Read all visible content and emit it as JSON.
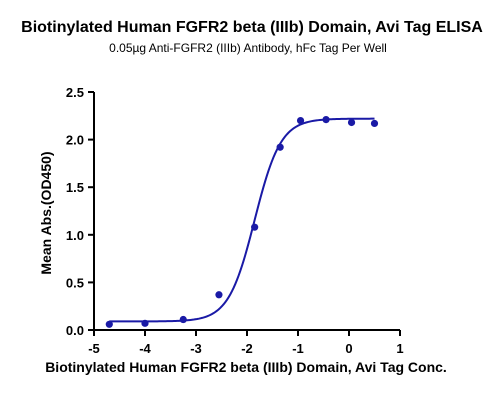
{
  "chart_data": {
    "type": "scatter",
    "title": "Biotinylated Human FGFR2 beta (IIIb) Domain, Avi Tag ELISA",
    "subtitle": "0.05µg Anti-FGFR2 (IIIb) Antibody, hFc Tag Per Well",
    "xlabel": "Biotinylated Human FGFR2 beta (IIIb) Domain, Avi Tag Conc.",
    "ylabel": "Mean Abs.(OD450)",
    "xlim": [
      -5,
      1
    ],
    "ylim": [
      0,
      2.5
    ],
    "x_ticks": [
      "-5",
      "-4",
      "-3",
      "-2",
      "-1",
      "0",
      "1"
    ],
    "y_ticks": [
      "0.0",
      "0.5",
      "1.0",
      "1.5",
      "2.0",
      "2.5"
    ],
    "grid": false,
    "series": [
      {
        "x": [
          -4.7,
          -4.0,
          -3.25,
          -2.55,
          -1.85,
          -1.35,
          -0.95,
          -0.45,
          0.05,
          0.5
        ],
        "y": [
          0.06,
          0.07,
          0.11,
          0.37,
          1.08,
          1.92,
          2.2,
          2.21,
          2.18,
          2.17
        ],
        "color": "#1a1aa6",
        "fit": {
          "bottom": 0.09,
          "top": 2.22,
          "logEC50": -1.85,
          "hill": 1.7
        }
      }
    ]
  }
}
